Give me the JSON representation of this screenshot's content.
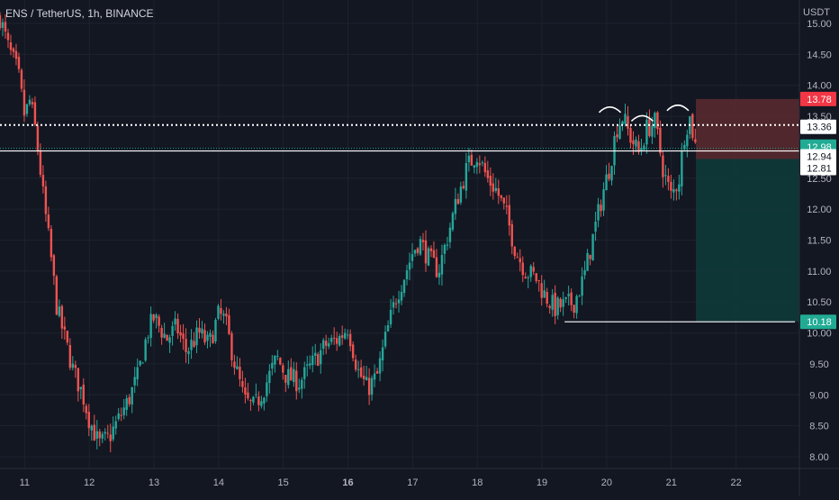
{
  "header": {
    "symbol": "ENS",
    "separator": " / ",
    "pair": "TetherUS",
    "interval": "1h",
    "exchange": "BINANCE"
  },
  "price_axis": {
    "unit": "USDT",
    "ticks": [
      "15.00",
      "14.50",
      "14.00",
      "13.50",
      "12.50",
      "12.00",
      "11.50",
      "11.00",
      "10.50",
      "10.00",
      "9.50",
      "9.00",
      "8.50",
      "8.00"
    ],
    "tick_values": [
      15.0,
      14.5,
      14.0,
      13.5,
      12.5,
      12.0,
      11.5,
      11.0,
      10.5,
      10.0,
      9.5,
      9.0,
      8.5,
      8.0
    ]
  },
  "time_axis": {
    "labels": [
      "11",
      "12",
      "13",
      "14",
      "15",
      "16",
      "17",
      "18",
      "19",
      "20",
      "21",
      "22"
    ],
    "bold_labels": [
      "16"
    ]
  },
  "price_labels": [
    {
      "name": "stop-loss-label",
      "text": "13.78",
      "value": 13.78,
      "bg": "#f23645",
      "fg": "#ffffff"
    },
    {
      "name": "dotted-line-label",
      "text": "13.36",
      "value": 13.36,
      "bg": "#ffffff",
      "fg": "#131722"
    },
    {
      "name": "last-price-label",
      "text": "12.98",
      "value": 12.98,
      "bg": "#22ab94",
      "fg": "#ffffff"
    },
    {
      "name": "entry-line-label",
      "text": "12.94",
      "value": 12.94,
      "bg": "#ffffff",
      "fg": "#131722"
    },
    {
      "name": "position-entry-label",
      "text": "12.81",
      "value": 12.81,
      "bg": "#ffffff",
      "fg": "#131722"
    },
    {
      "name": "take-profit-label",
      "text": "10.18",
      "value": 10.18,
      "bg": "#22ab94",
      "fg": "#ffffff"
    }
  ],
  "colors": {
    "background": "#131722",
    "grid": "#1e222d",
    "up": "#26a69a",
    "down": "#ef5350",
    "stop_zone": "#5c2a2f",
    "target_zone": "#0f3a3a",
    "annotation": "#ffffff"
  },
  "chart_data": {
    "type": "candlestick",
    "symbol": "ENS / TetherUS",
    "interval": "1h",
    "ylim": [
      7.8,
      15.3
    ],
    "x_unit": "day of month",
    "xlim": [
      10.62,
      22.98
    ],
    "series_path": [
      [
        10.62,
        15.1
      ],
      [
        10.75,
        14.6
      ],
      [
        10.9,
        14.2
      ],
      [
        11.0,
        13.5
      ],
      [
        11.08,
        13.75
      ],
      [
        11.15,
        13.4
      ],
      [
        11.22,
        12.85
      ],
      [
        11.3,
        12.1
      ],
      [
        11.4,
        11.3
      ],
      [
        11.5,
        10.4
      ],
      [
        11.6,
        10.0
      ],
      [
        11.75,
        9.4
      ],
      [
        11.9,
        9.0
      ],
      [
        12.0,
        8.6
      ],
      [
        12.15,
        8.2
      ],
      [
        12.3,
        8.3
      ],
      [
        12.45,
        8.6
      ],
      [
        12.6,
        8.9
      ],
      [
        12.75,
        9.3
      ],
      [
        12.9,
        10.0
      ],
      [
        13.0,
        10.25
      ],
      [
        13.2,
        9.9
      ],
      [
        13.35,
        10.1
      ],
      [
        13.5,
        9.7
      ],
      [
        13.7,
        10.0
      ],
      [
        13.85,
        9.8
      ],
      [
        14.0,
        10.3
      ],
      [
        14.1,
        10.2
      ],
      [
        14.25,
        9.5
      ],
      [
        14.4,
        8.9
      ],
      [
        14.55,
        8.8
      ],
      [
        14.7,
        9.1
      ],
      [
        14.9,
        9.6
      ],
      [
        15.05,
        9.3
      ],
      [
        15.25,
        9.2
      ],
      [
        15.45,
        9.5
      ],
      [
        15.65,
        9.8
      ],
      [
        15.85,
        9.9
      ],
      [
        16.0,
        10.1
      ],
      [
        16.15,
        9.4
      ],
      [
        16.3,
        9.1
      ],
      [
        16.45,
        9.3
      ],
      [
        16.6,
        10.0
      ],
      [
        16.75,
        10.6
      ],
      [
        16.9,
        11.0
      ],
      [
        17.0,
        11.3
      ],
      [
        17.1,
        11.5
      ],
      [
        17.25,
        11.2
      ],
      [
        17.4,
        11.0
      ],
      [
        17.55,
        11.6
      ],
      [
        17.7,
        12.2
      ],
      [
        17.85,
        12.7
      ],
      [
        18.0,
        12.9
      ],
      [
        18.15,
        12.5
      ],
      [
        18.3,
        12.3
      ],
      [
        18.45,
        11.9
      ],
      [
        18.6,
        11.3
      ],
      [
        18.75,
        11.0
      ],
      [
        18.9,
        10.9
      ],
      [
        19.05,
        10.6
      ],
      [
        19.2,
        10.4
      ],
      [
        19.35,
        10.45
      ],
      [
        19.5,
        10.5
      ],
      [
        19.65,
        10.9
      ],
      [
        19.8,
        11.6
      ],
      [
        19.95,
        12.3
      ],
      [
        20.05,
        12.7
      ],
      [
        20.15,
        13.3
      ],
      [
        20.25,
        13.5
      ],
      [
        20.35,
        13.2
      ],
      [
        20.5,
        12.9
      ],
      [
        20.62,
        13.3
      ],
      [
        20.75,
        13.4
      ],
      [
        20.88,
        12.6
      ],
      [
        21.0,
        12.2
      ],
      [
        21.12,
        12.5
      ],
      [
        21.2,
        13.2
      ],
      [
        21.28,
        13.5
      ],
      [
        21.38,
        12.98
      ]
    ],
    "lines": [
      {
        "name": "dotted-level",
        "value": 13.36,
        "style": "dotted"
      },
      {
        "name": "entry-level",
        "value": 12.94,
        "style": "solid"
      },
      {
        "name": "support-level",
        "value": 10.18,
        "style": "solid",
        "x_start": 19.35
      }
    ],
    "position": {
      "type": "short",
      "x_start": 21.38,
      "x_end": 22.98,
      "entry": 12.81,
      "stop": 13.78,
      "target": 10.18
    },
    "annotations": [
      {
        "type": "arc",
        "x": 20.05,
        "y": 13.62
      },
      {
        "type": "arc",
        "x": 20.55,
        "y": 13.48
      },
      {
        "type": "arc",
        "x": 21.1,
        "y": 13.65
      }
    ]
  }
}
